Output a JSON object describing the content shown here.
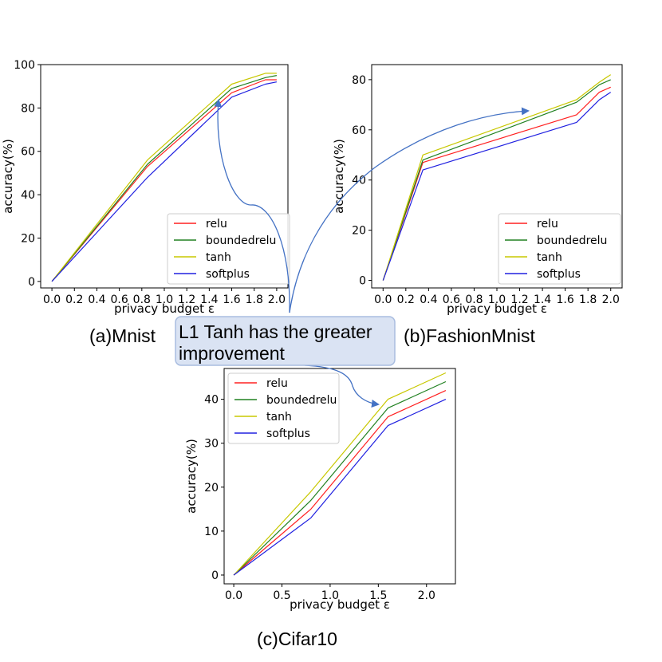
{
  "colors": {
    "relu": "#ff2020",
    "boundedrelu": "#208020",
    "tanh": "#c8c800",
    "softplus": "#2020e0",
    "callout_fill": "#dae3f3",
    "callout_stroke": "#a9bde0",
    "arrow": "#4472c4"
  },
  "callout": {
    "line1": "L1 Tanh has the greater",
    "line2": "improvement"
  },
  "chart_data": [
    {
      "type": "line",
      "caption": "(a)Mnist",
      "xlabel": "privacy budget ε",
      "ylabel": "accuracy(%)",
      "xlim": [
        -0.1,
        2.1
      ],
      "ylim": [
        -3,
        100
      ],
      "xticks": [
        "0.0",
        "0.2",
        "0.4",
        "0.6",
        "0.8",
        "1.0",
        "1.2",
        "1.4",
        "1.6",
        "1.8",
        "2.0"
      ],
      "yticks": [
        "0",
        "20",
        "40",
        "60",
        "80",
        "100"
      ],
      "legend": "lower-right",
      "series": [
        {
          "name": "relu",
          "x": [
            0,
            0.85,
            1.6,
            1.9,
            2.0
          ],
          "y": [
            0,
            53,
            87,
            93,
            93
          ]
        },
        {
          "name": "boundedrelu",
          "x": [
            0,
            0.85,
            1.6,
            1.9,
            2.0
          ],
          "y": [
            0,
            54,
            89,
            94,
            95
          ]
        },
        {
          "name": "tanh",
          "x": [
            0,
            0.85,
            1.6,
            1.9,
            2.0
          ],
          "y": [
            0,
            56,
            91,
            96,
            96
          ]
        },
        {
          "name": "softplus",
          "x": [
            0,
            0.85,
            1.6,
            1.9,
            2.0
          ],
          "y": [
            0,
            48,
            85,
            91,
            92
          ]
        }
      ]
    },
    {
      "type": "line",
      "caption": "(b)FashionMnist",
      "xlabel": "privacy budget ε",
      "ylabel": "accuracy(%)",
      "xlim": [
        -0.1,
        2.1
      ],
      "ylim": [
        -3,
        86
      ],
      "xticks": [
        "0.0",
        "0.2",
        "0.4",
        "0.6",
        "0.8",
        "1.0",
        "1.2",
        "1.4",
        "1.6",
        "1.8",
        "2.0"
      ],
      "yticks": [
        "0",
        "20",
        "40",
        "60",
        "80"
      ],
      "legend": "lower-right",
      "series": [
        {
          "name": "relu",
          "x": [
            0,
            0.35,
            1.7,
            1.9,
            2.0
          ],
          "y": [
            0,
            47,
            66,
            75,
            77
          ]
        },
        {
          "name": "boundedrelu",
          "x": [
            0,
            0.35,
            1.7,
            1.9,
            2.0
          ],
          "y": [
            0,
            48,
            71,
            78,
            80
          ]
        },
        {
          "name": "tanh",
          "x": [
            0,
            0.35,
            1.7,
            1.9,
            2.0
          ],
          "y": [
            0,
            50,
            72,
            79,
            82
          ]
        },
        {
          "name": "softplus",
          "x": [
            0,
            0.35,
            1.7,
            1.9,
            2.0
          ],
          "y": [
            0,
            44,
            63,
            72,
            75
          ]
        }
      ]
    },
    {
      "type": "line",
      "caption": "(c)Cifar10",
      "xlabel": "privacy budget ε",
      "ylabel": "accuracy(%)",
      "xlim": [
        -0.1,
        2.3
      ],
      "ylim": [
        -2,
        47
      ],
      "xticks": [
        "0.0",
        "0.5",
        "1.0",
        "1.5",
        "2.0"
      ],
      "yticks": [
        "0",
        "10",
        "20",
        "30",
        "40"
      ],
      "legend": "upper-left",
      "series": [
        {
          "name": "relu",
          "x": [
            0,
            0.8,
            1.6,
            2.2
          ],
          "y": [
            0,
            15,
            36,
            42
          ]
        },
        {
          "name": "boundedrelu",
          "x": [
            0,
            0.8,
            1.6,
            2.2
          ],
          "y": [
            0,
            17,
            38,
            44
          ]
        },
        {
          "name": "tanh",
          "x": [
            0,
            0.8,
            1.6,
            2.2
          ],
          "y": [
            0,
            19,
            40,
            46
          ]
        },
        {
          "name": "softplus",
          "x": [
            0,
            0.8,
            1.6,
            2.2
          ],
          "y": [
            0,
            13,
            34,
            40
          ]
        }
      ]
    }
  ]
}
